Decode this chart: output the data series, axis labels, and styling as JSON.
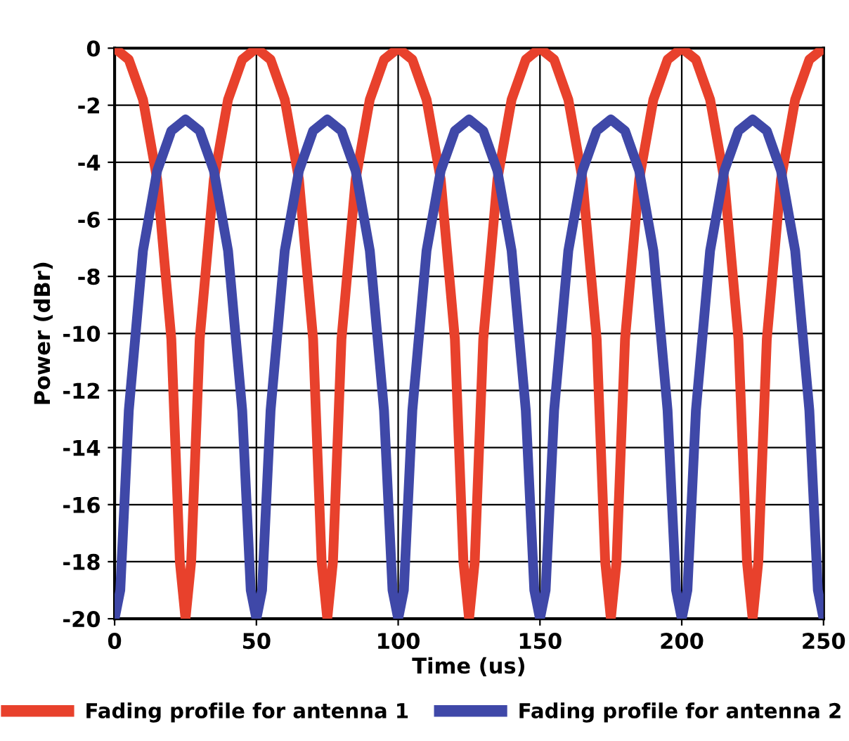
{
  "chart_data": {
    "type": "line",
    "xlabel": "Time (us)",
    "ylabel": "Power (dBr)",
    "xlim": [
      0,
      250
    ],
    "ylim": [
      -20,
      0
    ],
    "xticks": [
      0,
      50,
      100,
      150,
      200,
      250
    ],
    "yticks": [
      0,
      -2,
      -4,
      -6,
      -8,
      -10,
      -12,
      -14,
      -16,
      -18,
      -20
    ],
    "grid": true,
    "legend": "bottom",
    "line_style": "solid",
    "marker": "none",
    "series": [
      {
        "name": "Fading profile for antenna 1",
        "color": "#e8412c",
        "x": [
          0,
          5,
          10,
          15,
          20,
          23,
          25,
          27,
          30,
          35,
          40,
          45,
          50,
          55,
          60,
          65,
          70,
          73,
          75,
          77,
          80,
          85,
          90,
          95,
          100,
          105,
          110,
          115,
          120,
          123,
          125,
          127,
          130,
          135,
          140,
          145,
          150,
          155,
          160,
          165,
          170,
          173,
          175,
          177,
          180,
          185,
          190,
          195,
          200,
          205,
          210,
          215,
          220,
          223,
          225,
          227,
          230,
          235,
          240,
          245,
          250
        ],
        "values": [
          0,
          -0.4,
          -1.8,
          -4.6,
          -10.2,
          -18,
          -20,
          -18,
          -10.2,
          -4.6,
          -1.8,
          -0.4,
          0,
          -0.4,
          -1.8,
          -4.6,
          -10.2,
          -18,
          -20,
          -18,
          -10.2,
          -4.6,
          -1.8,
          -0.4,
          0,
          -0.4,
          -1.8,
          -4.6,
          -10.2,
          -18,
          -20,
          -18,
          -10.2,
          -4.6,
          -1.8,
          -0.4,
          0,
          -0.4,
          -1.8,
          -4.6,
          -10.2,
          -18,
          -20,
          -18,
          -10.2,
          -4.6,
          -1.8,
          -0.4,
          0,
          -0.4,
          -1.8,
          -4.6,
          -10.2,
          -18,
          -20,
          -18,
          -10.2,
          -4.6,
          -1.8,
          -0.4,
          0
        ]
      },
      {
        "name": "Fading profile for antenna 2",
        "color": "#3f48a8",
        "x": [
          0,
          2,
          5,
          10,
          15,
          20,
          25,
          30,
          35,
          40,
          45,
          48,
          50,
          52,
          55,
          60,
          65,
          70,
          75,
          80,
          85,
          90,
          95,
          98,
          100,
          102,
          105,
          110,
          115,
          120,
          125,
          130,
          135,
          140,
          145,
          148,
          150,
          152,
          155,
          160,
          165,
          170,
          175,
          180,
          185,
          190,
          195,
          198,
          200,
          202,
          205,
          210,
          215,
          220,
          225,
          230,
          235,
          240,
          245,
          248,
          250
        ],
        "values": [
          -20,
          -19,
          -12.7,
          -7.1,
          -4.3,
          -2.9,
          -2.5,
          -2.9,
          -4.3,
          -7.1,
          -12.7,
          -19,
          -20,
          -19,
          -12.7,
          -7.1,
          -4.3,
          -2.9,
          -2.5,
          -2.9,
          -4.3,
          -7.1,
          -12.7,
          -19,
          -20,
          -19,
          -12.7,
          -7.1,
          -4.3,
          -2.9,
          -2.5,
          -2.9,
          -4.3,
          -7.1,
          -12.7,
          -19,
          -20,
          -19,
          -12.7,
          -7.1,
          -4.3,
          -2.9,
          -2.5,
          -2.9,
          -4.3,
          -7.1,
          -12.7,
          -19,
          -20,
          -19,
          -12.7,
          -7.1,
          -4.3,
          -2.9,
          -2.5,
          -2.9,
          -4.3,
          -7.1,
          -12.7,
          -19,
          -20
        ]
      }
    ]
  }
}
